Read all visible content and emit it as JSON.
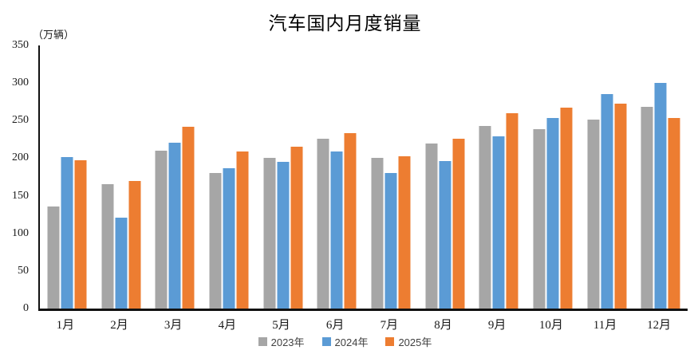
{
  "page": {
    "background": "#ffffff"
  },
  "chart_data": {
    "type": "bar",
    "title": "汽车国内月度销量",
    "unit_label": "（万辆）",
    "categories": [
      "1月",
      "2月",
      "3月",
      "4月",
      "5月",
      "6月",
      "7月",
      "8月",
      "9月",
      "10月",
      "11月",
      "12月"
    ],
    "series": [
      {
        "name": "2023年",
        "color": "#A6A6A6",
        "values": [
          136,
          166,
          210,
          180,
          200,
          226,
          201,
          220,
          243,
          239,
          251,
          268
        ]
      },
      {
        "name": "2024年",
        "color": "#5B9BD5",
        "values": [
          202,
          121,
          221,
          187,
          195,
          209,
          180,
          196,
          229,
          253,
          285,
          300
        ]
      },
      {
        "name": "2025年",
        "color": "#ED7D31",
        "values": [
          197,
          170,
          242,
          209,
          215,
          233,
          203,
          226,
          260,
          267,
          273,
          254
        ]
      }
    ],
    "ylim": [
      0,
      350
    ],
    "yticks": [
      0,
      50,
      100,
      150,
      200,
      250,
      300,
      350
    ],
    "grid": false,
    "legend_position": "bottom",
    "axis_color": "#111111"
  }
}
